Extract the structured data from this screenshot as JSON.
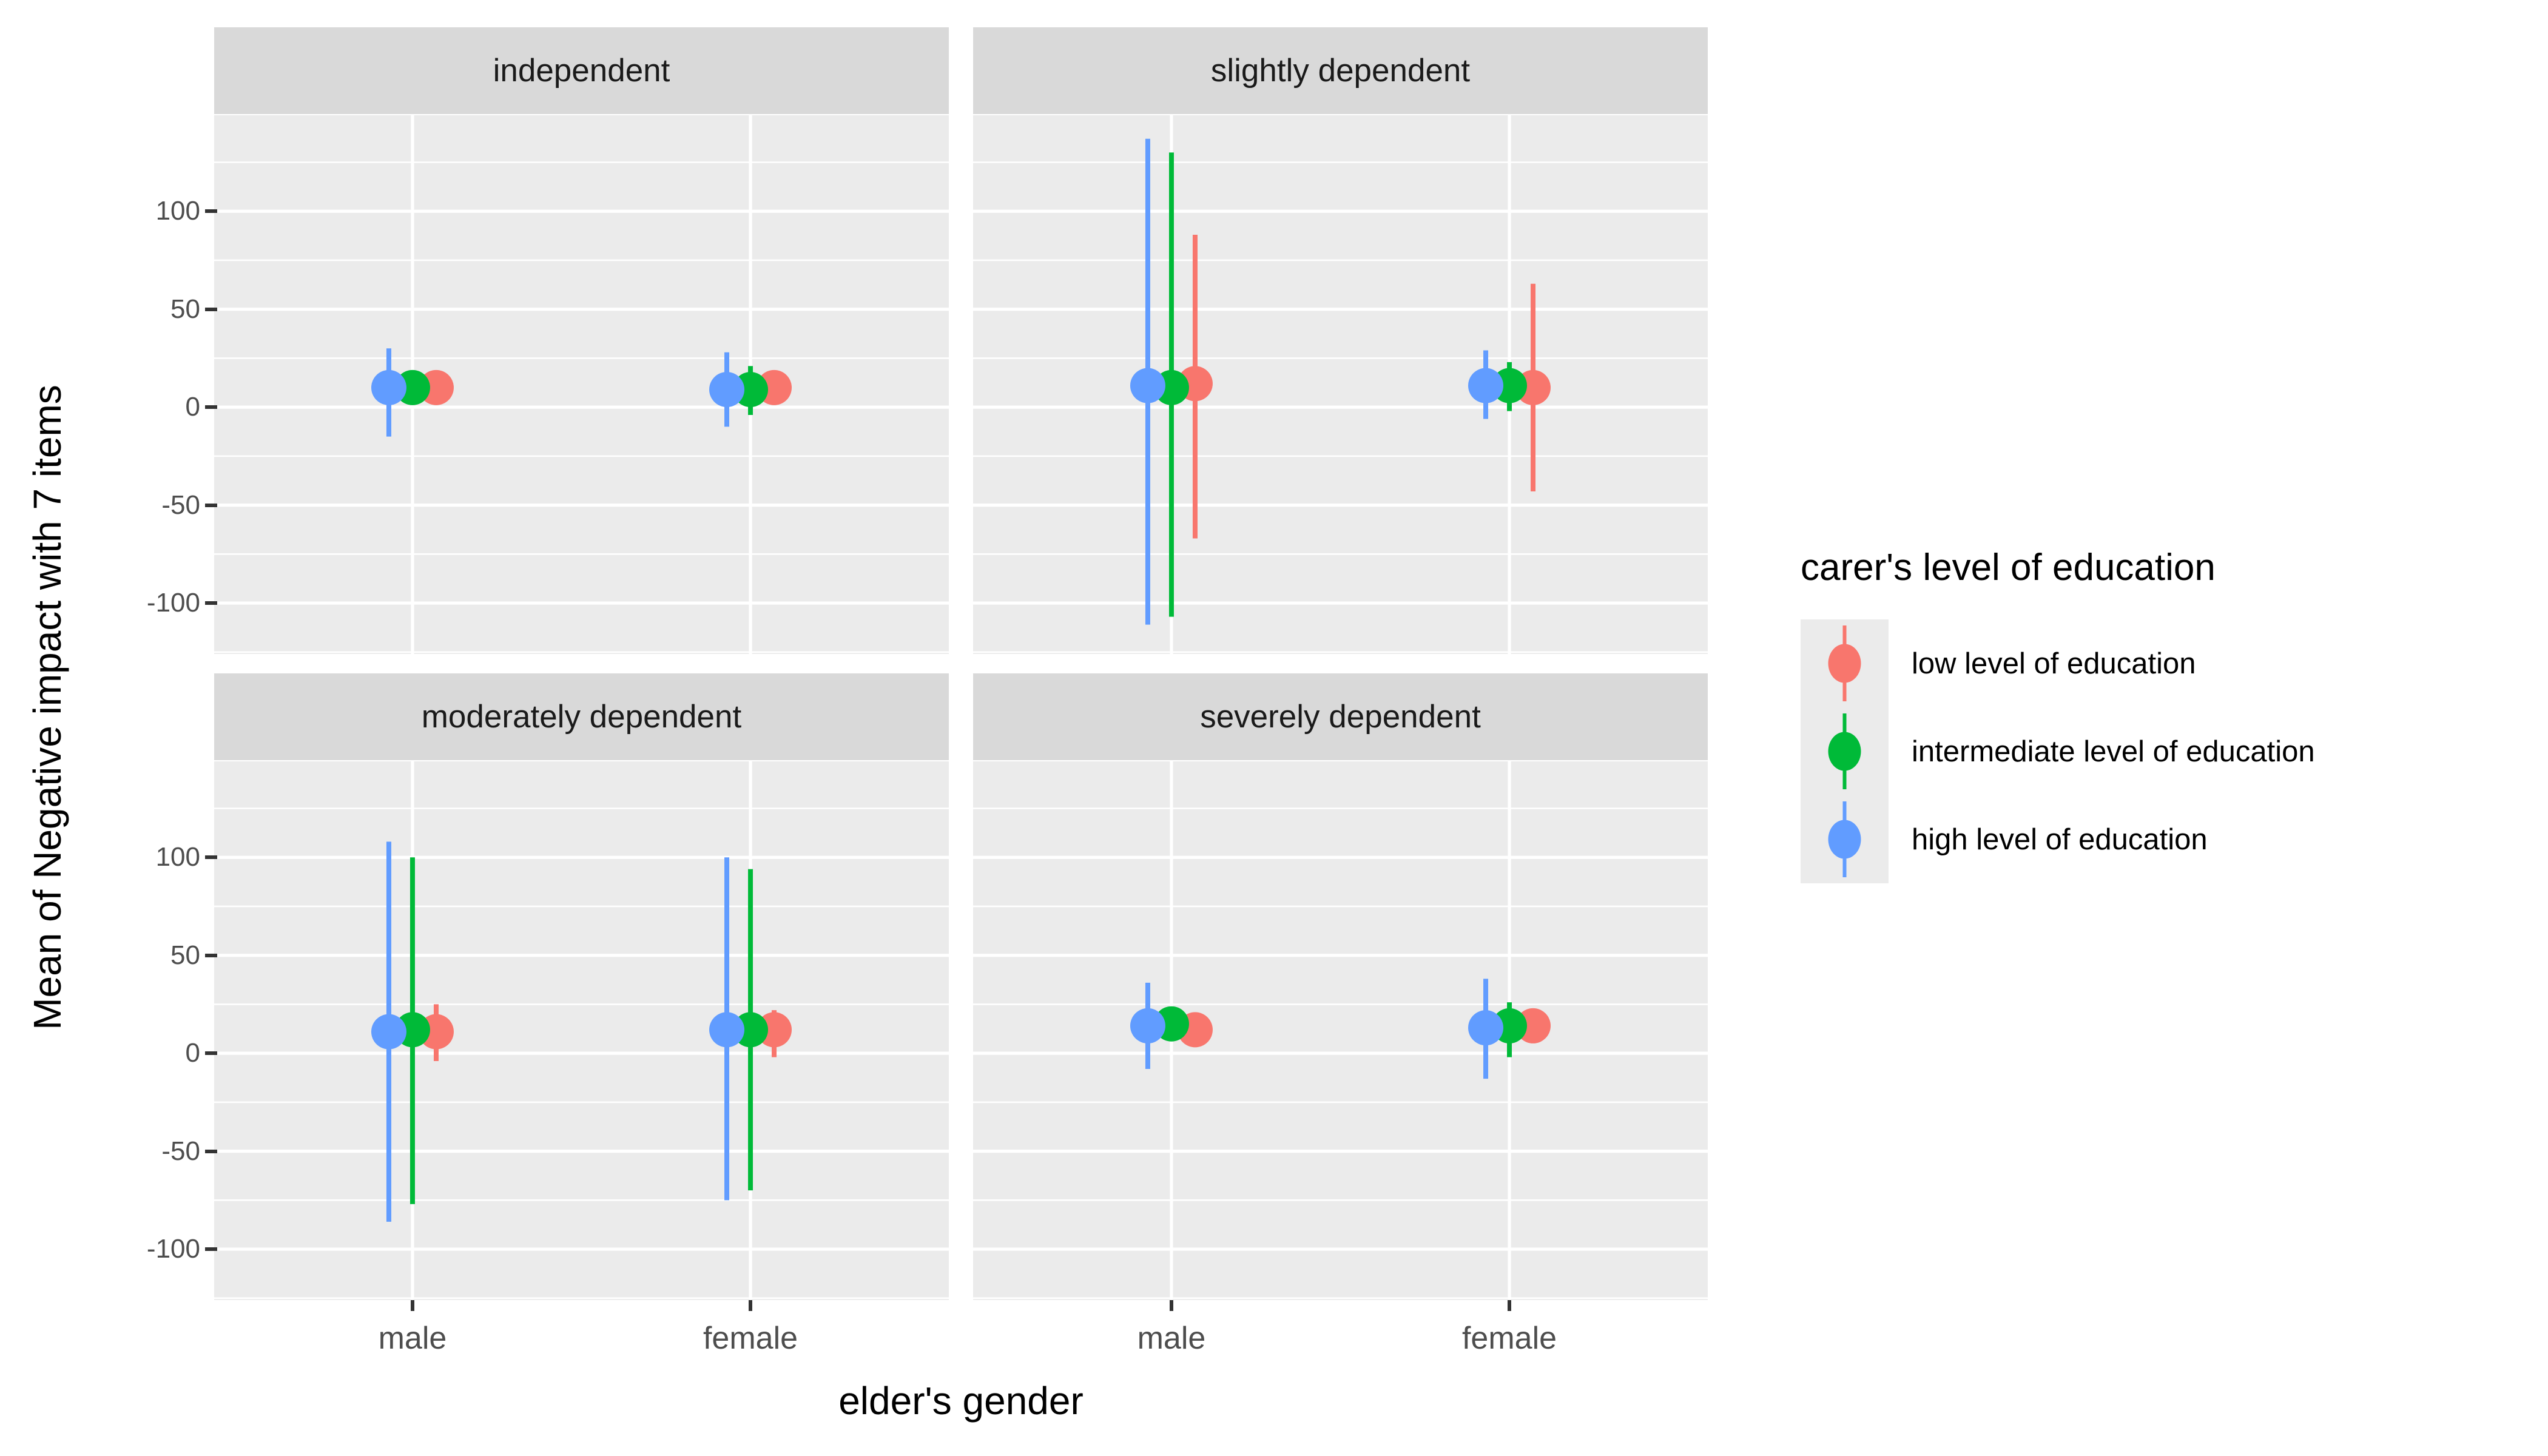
{
  "figure": {
    "background": "#FFFFFF"
  },
  "y_axis": {
    "title": "Mean of Negative impact with 7 items",
    "tick_labels": [
      "100",
      "50",
      "0",
      "-50",
      "-100"
    ],
    "ticks": [
      100,
      50,
      0,
      -50,
      -100
    ],
    "limits": [
      -126,
      149
    ]
  },
  "x_axis": {
    "title": "elder's gender",
    "categories": [
      "male",
      "female"
    ]
  },
  "legend": {
    "title": "carer's level of education",
    "entries": [
      {
        "label": "low level of education",
        "series": "low",
        "color": "#F8766D"
      },
      {
        "label": "intermediate level of education",
        "series": "intermediate",
        "color": "#00BA38"
      },
      {
        "label": "high level of education",
        "series": "high",
        "color": "#619CFF"
      }
    ]
  },
  "colors": {
    "low": "#F8766D",
    "intermediate": "#00BA38",
    "high": "#619CFF",
    "panel_bg": "#EBEBEB",
    "strip_bg": "#D9D9D9",
    "gridline": "#FFFFFF",
    "axis_text": "#4D4D4D",
    "tick_mark": "#333333"
  },
  "chart_data": {
    "type": "pointrange",
    "title": "",
    "xlabel": "elder's gender",
    "ylabel": "Mean of Negative impact with 7 items",
    "ylim": [
      -126,
      149
    ],
    "ybreaks": [
      -100,
      -50,
      0,
      50,
      100
    ],
    "grid": true,
    "legend_position": "right",
    "facet_variable_values": [
      "independent",
      "slightly dependent",
      "moderately dependent",
      "severely dependent"
    ],
    "facets": [
      {
        "title": "independent",
        "groups": [
          {
            "x": "male",
            "points": [
              {
                "series": "low",
                "mean": 10,
                "lo": null,
                "hi": null
              },
              {
                "series": "intermediate",
                "mean": 10,
                "lo": null,
                "hi": null
              },
              {
                "series": "high",
                "mean": 10,
                "lo": -15,
                "hi": 30
              }
            ]
          },
          {
            "x": "female",
            "points": [
              {
                "series": "low",
                "mean": 10,
                "lo": null,
                "hi": null
              },
              {
                "series": "intermediate",
                "mean": 9,
                "lo": -4,
                "hi": 21
              },
              {
                "series": "high",
                "mean": 9,
                "lo": -10,
                "hi": 28
              }
            ]
          }
        ]
      },
      {
        "title": "slightly dependent",
        "groups": [
          {
            "x": "male",
            "points": [
              {
                "series": "low",
                "mean": 12,
                "lo": -67,
                "hi": 88
              },
              {
                "series": "intermediate",
                "mean": 10,
                "lo": -107,
                "hi": 130
              },
              {
                "series": "high",
                "mean": 11,
                "lo": -111,
                "hi": 137
              }
            ]
          },
          {
            "x": "female",
            "points": [
              {
                "series": "low",
                "mean": 10,
                "lo": -43,
                "hi": 63
              },
              {
                "series": "intermediate",
                "mean": 11,
                "lo": -2,
                "hi": 23
              },
              {
                "series": "high",
                "mean": 11,
                "lo": -6,
                "hi": 29
              }
            ]
          }
        ]
      },
      {
        "title": "moderately dependent",
        "groups": [
          {
            "x": "male",
            "points": [
              {
                "series": "low",
                "mean": 11,
                "lo": -4,
                "hi": 25
              },
              {
                "series": "intermediate",
                "mean": 12,
                "lo": -77,
                "hi": 100
              },
              {
                "series": "high",
                "mean": 11,
                "lo": -86,
                "hi": 108
              }
            ]
          },
          {
            "x": "female",
            "points": [
              {
                "series": "low",
                "mean": 12,
                "lo": -2,
                "hi": 22
              },
              {
                "series": "intermediate",
                "mean": 12,
                "lo": -70,
                "hi": 94
              },
              {
                "series": "high",
                "mean": 12,
                "lo": -75,
                "hi": 100
              }
            ]
          }
        ]
      },
      {
        "title": "severely dependent",
        "groups": [
          {
            "x": "male",
            "points": [
              {
                "series": "low",
                "mean": 12,
                "lo": null,
                "hi": null
              },
              {
                "series": "intermediate",
                "mean": 15,
                "lo": null,
                "hi": null
              },
              {
                "series": "high",
                "mean": 14,
                "lo": -8,
                "hi": 36
              }
            ]
          },
          {
            "x": "female",
            "points": [
              {
                "series": "low",
                "mean": 14,
                "lo": null,
                "hi": null
              },
              {
                "series": "intermediate",
                "mean": 14,
                "lo": -2,
                "hi": 26
              },
              {
                "series": "high",
                "mean": 13,
                "lo": -13,
                "hi": 38
              }
            ]
          }
        ]
      }
    ]
  }
}
